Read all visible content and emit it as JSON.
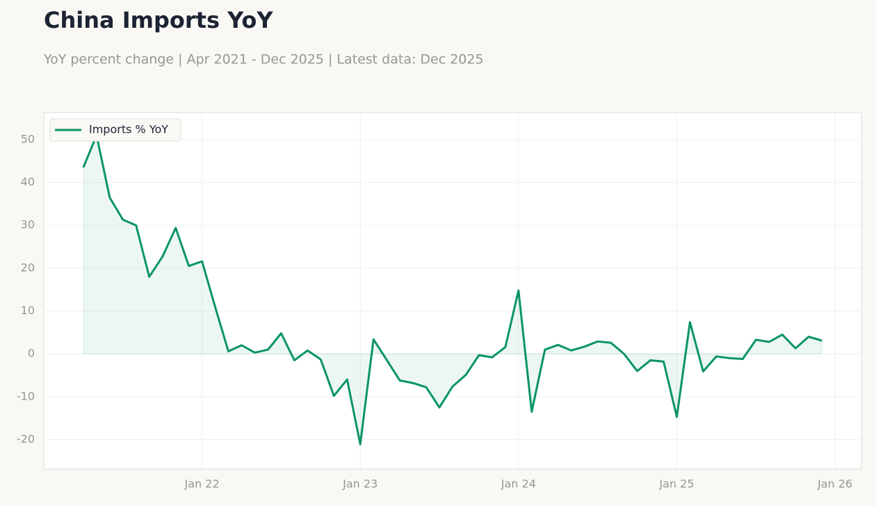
{
  "chart_data": {
    "type": "line",
    "title": "China Imports YoY",
    "subtitle": "YoY percent change | Apr 2021 - Dec 2025 | Latest data: Dec 2025",
    "x": [
      "2021-04",
      "2021-05",
      "2021-06",
      "2021-07",
      "2021-08",
      "2021-09",
      "2021-10",
      "2021-11",
      "2021-12",
      "2022-01",
      "2022-02",
      "2022-03",
      "2022-04",
      "2022-05",
      "2022-06",
      "2022-07",
      "2022-08",
      "2022-09",
      "2022-10",
      "2022-11",
      "2022-12",
      "2023-01",
      "2023-02",
      "2023-03",
      "2023-04",
      "2023-05",
      "2023-06",
      "2023-07",
      "2023-08",
      "2023-09",
      "2023-10",
      "2023-11",
      "2023-12",
      "2024-01",
      "2024-02",
      "2024-03",
      "2024-04",
      "2024-05",
      "2024-06",
      "2024-07",
      "2024-08",
      "2024-09",
      "2024-10",
      "2024-11",
      "2024-12",
      "2025-01",
      "2025-02",
      "2025-03",
      "2025-04",
      "2025-05",
      "2025-06",
      "2025-07",
      "2025-08",
      "2025-09",
      "2025-10",
      "2025-11",
      "2025-12"
    ],
    "series": [
      {
        "name": "Imports % YoY",
        "color": "#0a9466",
        "values": [
          43.5,
          51,
          36.5,
          31.3,
          30,
          18,
          22.7,
          29.4,
          20.5,
          21.6,
          10.9,
          0.6,
          2,
          0.3,
          1,
          4.8,
          -1.5,
          0.8,
          -1.3,
          -9.8,
          -6,
          -21.1,
          3.4,
          -1.4,
          -6.2,
          -6.8,
          -7.8,
          -12.5,
          -7.6,
          -4.9,
          -0.3,
          -0.8,
          1.6,
          14.8,
          -13.5,
          1,
          2.1,
          0.8,
          1.7,
          2.9,
          2.6,
          0,
          -4,
          -1.5,
          -1.8,
          -14.7,
          7.4,
          -4.1,
          -0.6,
          -1,
          -1.2,
          3.3,
          2.8,
          4.5,
          1.3,
          4,
          3.1
        ]
      }
    ],
    "xlim": [
      "2021-01",
      "2026-03"
    ],
    "xticks": [
      {
        "value": "2022-01",
        "label": "Jan 22"
      },
      {
        "value": "2023-01",
        "label": "Jan 23"
      },
      {
        "value": "2024-01",
        "label": "Jan 24"
      },
      {
        "value": "2025-01",
        "label": "Jan 25"
      },
      {
        "value": "2026-01",
        "label": "Jan 26"
      }
    ],
    "ylim": [
      -26.9,
      56.3
    ],
    "yticks": [
      -20,
      -10,
      0,
      10,
      20,
      30,
      40,
      50
    ],
    "grid": true,
    "legend": "upper-left"
  }
}
